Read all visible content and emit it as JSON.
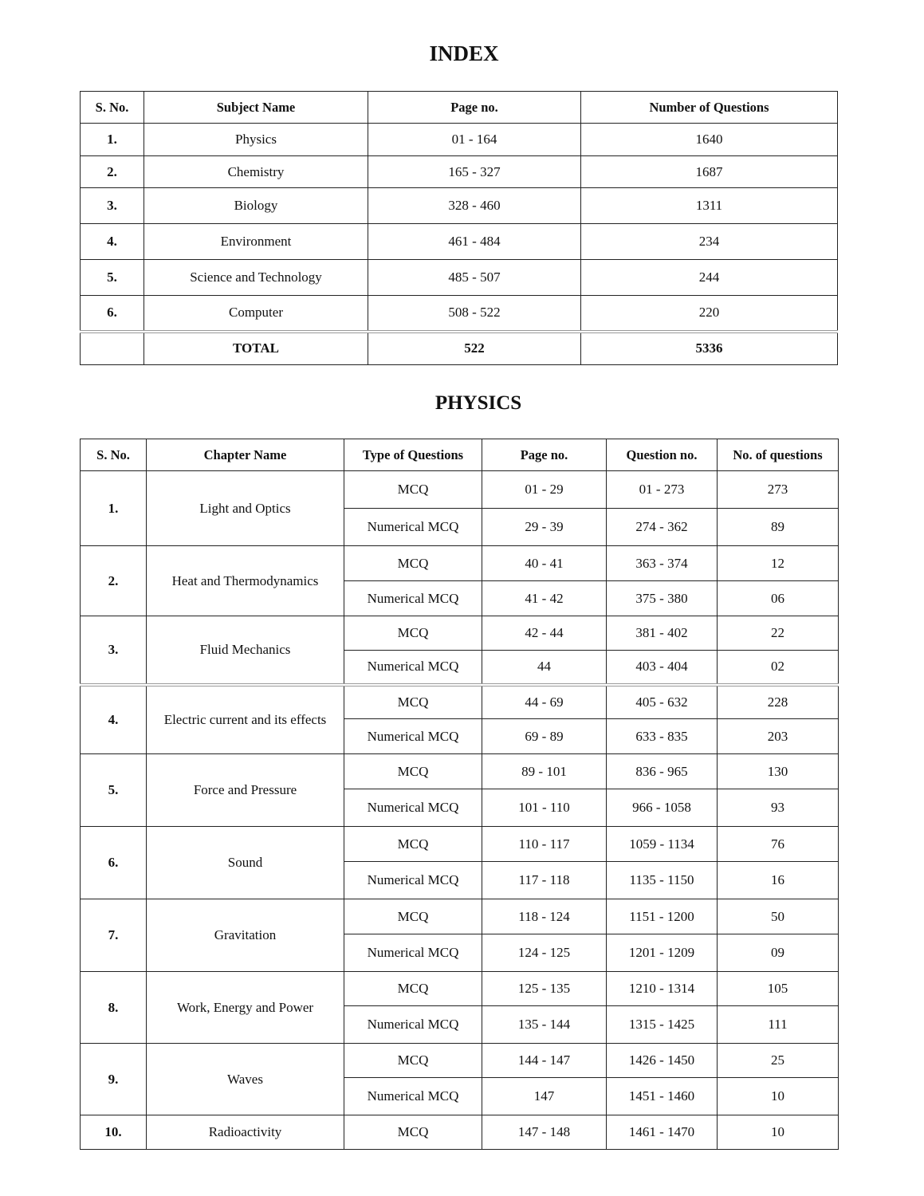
{
  "index": {
    "title": "INDEX",
    "headers": [
      "S. No.",
      "Subject  Name",
      "Page no.",
      "Number of  Questions"
    ],
    "rows": [
      {
        "sno": "1.",
        "subject": "Physics",
        "pages": "01 - 164",
        "questions": "1640"
      },
      {
        "sno": "2.",
        "subject": "Chemistry",
        "pages": "165 - 327",
        "questions": "1687"
      },
      {
        "sno": "3.",
        "subject": "Biology",
        "pages": "328 - 460",
        "questions": "1311"
      },
      {
        "sno": "4.",
        "subject": "Environment",
        "pages": "461 - 484",
        "questions": "234"
      },
      {
        "sno": "5.",
        "subject": "Science and Technology",
        "pages": "485 - 507",
        "questions": "244"
      },
      {
        "sno": "6.",
        "subject": "Computer",
        "pages": "508 - 522",
        "questions": "220"
      }
    ],
    "total": {
      "sno": "",
      "subject": "TOTAL",
      "pages": "522",
      "questions": "5336"
    }
  },
  "physics": {
    "title": "PHYSICS",
    "headers": [
      "S. No.",
      "Chapter Name",
      "Type of Questions",
      "Page no.",
      "Question no.",
      "No. of questions"
    ],
    "chapters": [
      {
        "sno": "1.",
        "name": "Light and Optics",
        "parts": [
          {
            "type": "MCQ",
            "pages": "01 - 29",
            "qnos": "01 - 273",
            "count": "273"
          },
          {
            "type": "Numerical MCQ",
            "pages": "29 - 39",
            "qnos": "274 - 362",
            "count": "89"
          }
        ]
      },
      {
        "sno": "2.",
        "name": "Heat and Thermodynamics",
        "parts": [
          {
            "type": "MCQ",
            "pages": "40 - 41",
            "qnos": "363 - 374",
            "count": "12"
          },
          {
            "type": "Numerical MCQ",
            "pages": "41 - 42",
            "qnos": "375 - 380",
            "count": "06"
          }
        ]
      },
      {
        "sno": "3.",
        "name": "Fluid Mechanics",
        "parts": [
          {
            "type": "MCQ",
            "pages": "42 - 44",
            "qnos": "381 - 402",
            "count": "22"
          },
          {
            "type": "Numerical MCQ",
            "pages": "44",
            "qnos": "403 - 404",
            "count": "02"
          }
        ]
      },
      {
        "sno": "4.",
        "name": "Electric current and its effects",
        "parts": [
          {
            "type": "MCQ",
            "pages": "44 - 69",
            "qnos": "405 - 632",
            "count": "228"
          },
          {
            "type": "Numerical  MCQ",
            "pages": "69 - 89",
            "qnos": "633 - 835",
            "count": "203"
          }
        ]
      },
      {
        "sno": "5.",
        "name": "Force and Pressure",
        "parts": [
          {
            "type": "MCQ",
            "pages": "89 - 101",
            "qnos": "836 - 965",
            "count": "130"
          },
          {
            "type": "Numerical  MCQ",
            "pages": "101 - 110",
            "qnos": "966 - 1058",
            "count": "93"
          }
        ]
      },
      {
        "sno": "6.",
        "name": "Sound",
        "parts": [
          {
            "type": "MCQ",
            "pages": "110 - 117",
            "qnos": "1059 - 1134",
            "count": "76"
          },
          {
            "type": "Numerical  MCQ",
            "pages": "117 - 118",
            "qnos": "1135 - 1150",
            "count": "16"
          }
        ]
      },
      {
        "sno": "7.",
        "name": "Gravitation",
        "parts": [
          {
            "type": "MCQ",
            "pages": "118 - 124",
            "qnos": "1151 - 1200",
            "count": "50"
          },
          {
            "type": "Numerical  MCQ",
            "pages": "124 - 125",
            "qnos": "1201 - 1209",
            "count": "09"
          }
        ]
      },
      {
        "sno": "8.",
        "name": "Work, Energy and Power",
        "parts": [
          {
            "type": "MCQ",
            "pages": "125 - 135",
            "qnos": "1210 - 1314",
            "count": "105"
          },
          {
            "type": "Numerical  MCQ",
            "pages": "135 - 144",
            "qnos": "1315 - 1425",
            "count": "111"
          }
        ]
      },
      {
        "sno": "9.",
        "name": "Waves",
        "parts": [
          {
            "type": "MCQ",
            "pages": "144 - 147",
            "qnos": "1426 - 1450",
            "count": "25"
          },
          {
            "type": "Numerical  MCQ",
            "pages": "147",
            "qnos": "1451 - 1460",
            "count": "10"
          }
        ]
      },
      {
        "sno": "10.",
        "name": "Radioactivity",
        "parts": [
          {
            "type": "MCQ",
            "pages": "147 - 148",
            "qnos": "1461 - 1470",
            "count": "10"
          }
        ]
      }
    ]
  }
}
